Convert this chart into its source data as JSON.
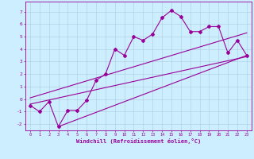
{
  "xlabel": "Windchill (Refroidissement éolien,°C)",
  "background_color": "#cceeff",
  "line_color": "#990099",
  "grid_color": "#aaccdd",
  "x_data": [
    0,
    1,
    2,
    3,
    4,
    5,
    6,
    7,
    8,
    9,
    10,
    11,
    12,
    13,
    14,
    15,
    16,
    17,
    18,
    19,
    20,
    21,
    22,
    23
  ],
  "y_data": [
    -0.5,
    -1.0,
    -0.2,
    -2.2,
    -0.9,
    -0.9,
    -0.1,
    1.5,
    2.0,
    4.0,
    3.5,
    5.0,
    4.7,
    5.2,
    6.5,
    7.1,
    6.6,
    5.4,
    5.4,
    5.8,
    5.8,
    3.7,
    4.7,
    3.5
  ],
  "trend1_x": [
    3,
    23
  ],
  "trend1_y": [
    -2.2,
    3.5
  ],
  "trend2_x": [
    0,
    23
  ],
  "trend2_y": [
    0.1,
    5.3
  ],
  "trend3_x": [
    0,
    23
  ],
  "trend3_y": [
    -0.4,
    3.4
  ],
  "ylim": [
    -2.5,
    7.8
  ],
  "xlim": [
    -0.5,
    23.5
  ],
  "xticks": [
    0,
    1,
    2,
    3,
    4,
    5,
    6,
    7,
    8,
    9,
    10,
    11,
    12,
    13,
    14,
    15,
    16,
    17,
    18,
    19,
    20,
    21,
    22,
    23
  ],
  "yticks": [
    -2,
    -1,
    0,
    1,
    2,
    3,
    4,
    5,
    6,
    7
  ],
  "marker": "D",
  "marker_size": 2.0,
  "line_width": 0.8
}
